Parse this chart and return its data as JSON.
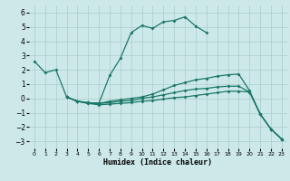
{
  "title": "",
  "xlabel": "Humidex (Indice chaleur)",
  "xlim": [
    -0.5,
    23.5
  ],
  "ylim": [
    -3.5,
    6.5
  ],
  "yticks": [
    -3,
    -2,
    -1,
    0,
    1,
    2,
    3,
    4,
    5,
    6
  ],
  "xticks": [
    0,
    1,
    2,
    3,
    4,
    5,
    6,
    7,
    8,
    9,
    10,
    11,
    12,
    13,
    14,
    15,
    16,
    17,
    18,
    19,
    20,
    21,
    22,
    23
  ],
  "bg_color": "#cde8e8",
  "line_color": "#1a7868",
  "grid_color": "#aacccc",
  "lines": [
    {
      "x": [
        0,
        1,
        2,
        3,
        4,
        5,
        6,
        7,
        8,
        9,
        10,
        11,
        12,
        13,
        14,
        15,
        16
      ],
      "y": [
        2.6,
        1.8,
        2.0,
        0.1,
        -0.2,
        -0.35,
        -0.35,
        1.6,
        2.8,
        4.6,
        5.1,
        4.9,
        5.35,
        5.45,
        5.7,
        5.05,
        4.6
      ]
    },
    {
      "x": [
        3,
        4,
        5,
        6,
        7,
        8,
        9,
        10,
        11,
        12,
        13,
        14,
        15,
        16,
        17,
        18,
        19,
        20,
        21,
        22,
        23
      ],
      "y": [
        0.1,
        -0.2,
        -0.3,
        -0.35,
        -0.2,
        -0.1,
        0.0,
        0.1,
        0.3,
        0.6,
        0.9,
        1.1,
        1.3,
        1.4,
        1.55,
        1.65,
        1.7,
        0.55,
        -1.1,
        -2.15,
        -2.85
      ]
    },
    {
      "x": [
        3,
        4,
        5,
        6,
        7,
        8,
        9,
        10,
        11,
        12,
        13,
        14,
        15,
        16,
        17,
        18,
        19,
        20,
        21,
        22,
        23
      ],
      "y": [
        0.1,
        -0.2,
        -0.3,
        -0.35,
        -0.3,
        -0.2,
        -0.15,
        0.0,
        0.1,
        0.25,
        0.4,
        0.55,
        0.65,
        0.7,
        0.8,
        0.85,
        0.85,
        0.45,
        -1.1,
        -2.15,
        -2.85
      ]
    },
    {
      "x": [
        3,
        4,
        5,
        6,
        7,
        8,
        9,
        10,
        11,
        12,
        13,
        14,
        15,
        16,
        17,
        18,
        19,
        20,
        21,
        22,
        23
      ],
      "y": [
        0.1,
        -0.2,
        -0.35,
        -0.45,
        -0.4,
        -0.35,
        -0.3,
        -0.2,
        -0.15,
        -0.05,
        0.05,
        0.1,
        0.2,
        0.3,
        0.4,
        0.5,
        0.5,
        0.45,
        -1.1,
        -2.15,
        -2.85
      ]
    }
  ]
}
